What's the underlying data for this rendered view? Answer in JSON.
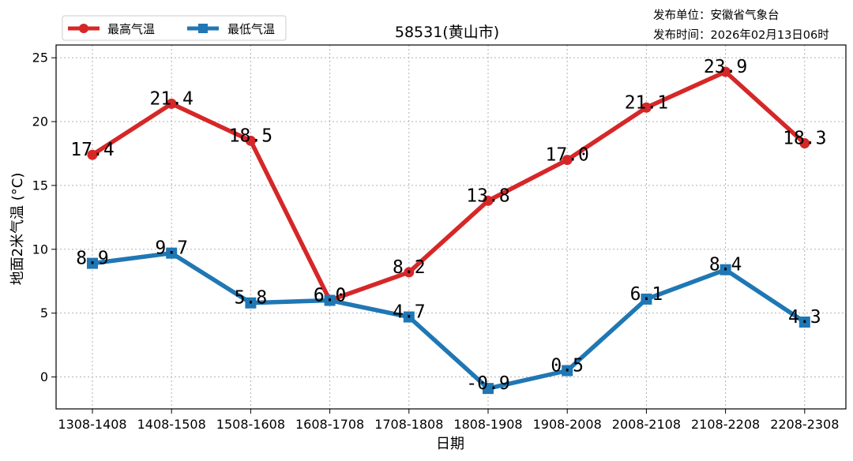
{
  "chart_data": {
    "type": "line",
    "title": "58531(黄山市)",
    "xlabel": "日期",
    "ylabel": "地面2米气温 (°C)",
    "categories": [
      "1308-1408",
      "1408-1508",
      "1508-1608",
      "1608-1708",
      "1708-1808",
      "1808-1908",
      "1908-2008",
      "2008-2108",
      "2108-2208",
      "2208-2308"
    ],
    "ylim": [
      -2.5,
      26
    ],
    "yticks": [
      0,
      5,
      10,
      15,
      20,
      25
    ],
    "grid": true,
    "legend_position": "top-left",
    "series": [
      {
        "name": "最高气温",
        "color": "#d62728",
        "marker": "circle",
        "values": [
          17.4,
          21.4,
          18.5,
          6.0,
          8.2,
          13.8,
          17.0,
          21.1,
          23.9,
          18.3
        ],
        "labels": [
          "17.4",
          "21.4",
          "18.5",
          "6.0",
          "8.2",
          "13.8",
          "17.0",
          "21.1",
          "23.9",
          "18.3"
        ]
      },
      {
        "name": "最低气温",
        "color": "#1f77b4",
        "marker": "square",
        "values": [
          8.9,
          9.7,
          5.8,
          6.0,
          4.7,
          -0.9,
          0.5,
          6.1,
          8.4,
          4.3
        ],
        "labels": [
          "8.9",
          "9.7",
          "5.8",
          "6.0",
          "4.7",
          "-0.9",
          "0.5",
          "6.1",
          "8.4",
          "4.3"
        ]
      }
    ]
  },
  "meta": {
    "publisher": "发布单位：安徽省气象台",
    "publish_time": "发布时间：2026年02月13日06时"
  }
}
